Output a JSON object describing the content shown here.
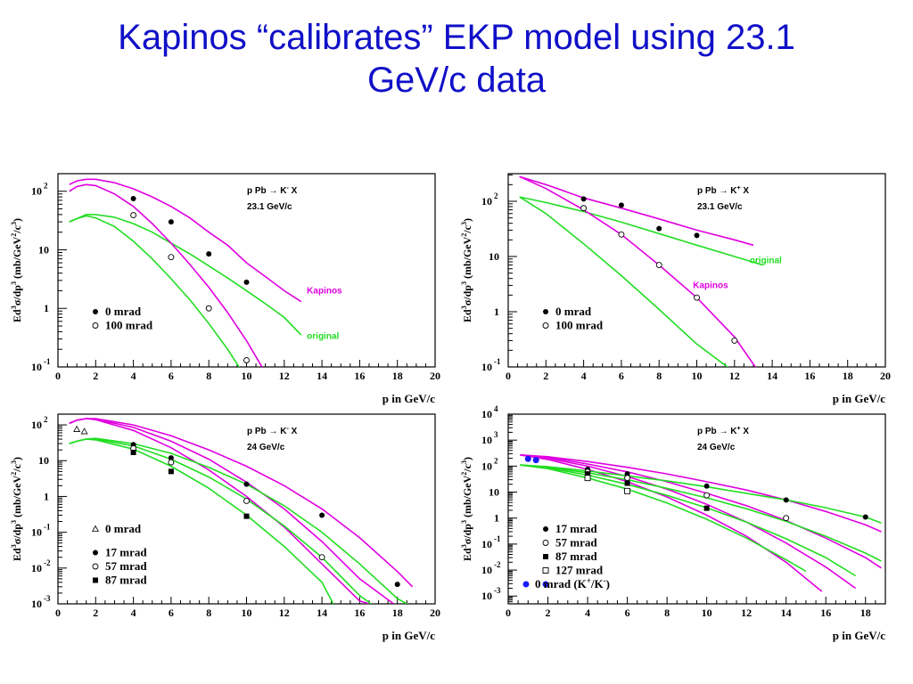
{
  "slide": {
    "title_line1": "Kapinos “calibrates” EKP model using 23.1",
    "title_line2": "GeV/c data"
  },
  "colors": {
    "title": "#1010c8",
    "magenta": "#e000e0",
    "green": "#22dd22",
    "blue": "#1a1aff",
    "axis": "#000000"
  },
  "chart_data": [
    {
      "type": "scatter",
      "reaction": "p Pb → K⁻ X",
      "energy": "23.1 GeV/c",
      "xlabel": "p in GeV/c",
      "ylabel": "Ed³σ/dp³  (mb/GeV²/c³)",
      "xlim": [
        0,
        20
      ],
      "ylim_log10": [
        -1,
        2.3
      ],
      "log_y": true,
      "x_ticks": [
        0,
        2,
        4,
        6,
        8,
        10,
        12,
        14,
        16,
        18,
        20
      ],
      "y_ticks": [
        {
          "e": -1,
          "label": "10",
          "sup": "-1"
        },
        {
          "e": 0,
          "label": "1",
          "sup": ""
        },
        {
          "e": 1,
          "label": "10",
          "sup": ""
        },
        {
          "e": 2,
          "label": "10",
          "sup": "2"
        }
      ],
      "legend": [
        {
          "marker": "filled-circle",
          "label": "0 mrad"
        },
        {
          "marker": "open-circle",
          "label": "100 mrad"
        }
      ],
      "curve_labels": [
        {
          "text": "Kapinos",
          "color": "#e000e0",
          "x": 13.2,
          "y": 1.8
        },
        {
          "text": "original",
          "color": "#22dd22",
          "x": 13.2,
          "y": 0.3
        }
      ],
      "series": [
        {
          "name": "0 mrad",
          "marker": "filled-circle",
          "x": [
            4,
            6,
            8,
            10
          ],
          "y": [
            75,
            30,
            8.5,
            2.8
          ]
        },
        {
          "name": "100 mrad",
          "marker": "open-circle",
          "x": [
            4,
            6,
            8,
            10
          ],
          "y": [
            39,
            7.5,
            1,
            0.13
          ]
        }
      ],
      "curves": [
        {
          "color": "magenta",
          "x": [
            0.6,
            1,
            1.5,
            2,
            3,
            4,
            5,
            6,
            7,
            8,
            9,
            10,
            11,
            12,
            12.9
          ],
          "y": [
            130,
            150,
            160,
            160,
            140,
            110,
            80,
            55,
            35,
            20,
            12,
            6,
            3.5,
            2,
            1.3
          ]
        },
        {
          "color": "green",
          "x": [
            0.6,
            1,
            1.5,
            2,
            3,
            4,
            5,
            6,
            7,
            8,
            9,
            10,
            11,
            12,
            12.9
          ],
          "y": [
            30,
            34,
            40,
            40,
            36,
            28,
            20,
            13,
            8.5,
            5.3,
            3.3,
            2,
            1.2,
            0.7,
            0.35
          ]
        },
        {
          "color": "magenta",
          "x": [
            0.6,
            1,
            1.5,
            2,
            3,
            4,
            5,
            6,
            7,
            8,
            9,
            10,
            11
          ],
          "y": [
            100,
            120,
            130,
            125,
            90,
            55,
            28,
            13,
            5.6,
            2.3,
            0.85,
            0.28,
            0.08
          ]
        },
        {
          "color": "green",
          "x": [
            0.6,
            1,
            1.5,
            2,
            3,
            4,
            5,
            6,
            7,
            8,
            9,
            9.8
          ],
          "y": [
            30,
            34,
            38,
            35,
            25,
            14,
            7,
            3.2,
            1.4,
            0.55,
            0.2,
            0.08
          ]
        }
      ]
    },
    {
      "type": "scatter",
      "reaction": "p Pb → K⁺ X",
      "energy": "23.1 GeV/c",
      "xlabel": "p in GeV/c",
      "ylabel": "Ed³σ/dp³  (mb/GeV²/c³)",
      "xlim": [
        0,
        20
      ],
      "ylim_log10": [
        -1,
        2.5
      ],
      "log_y": true,
      "x_ticks": [
        0,
        2,
        4,
        6,
        8,
        10,
        12,
        14,
        16,
        18,
        20
      ],
      "y_ticks": [
        {
          "e": -1,
          "label": "10",
          "sup": "-1"
        },
        {
          "e": 0,
          "label": "1",
          "sup": ""
        },
        {
          "e": 1,
          "label": "10",
          "sup": ""
        },
        {
          "e": 2,
          "label": "10",
          "sup": "2"
        }
      ],
      "legend": [
        {
          "marker": "filled-circle",
          "label": "0 mrad"
        },
        {
          "marker": "open-circle",
          "label": "100 mrad"
        }
      ],
      "curve_labels": [
        {
          "text": "original",
          "color": "#22dd22",
          "x": 12.8,
          "y": 7.5
        },
        {
          "text": "Kapinos",
          "color": "#e000e0",
          "x": 9.8,
          "y": 2.7
        }
      ],
      "series": [
        {
          "name": "0 mrad",
          "marker": "filled-circle",
          "x": [
            4,
            6,
            8,
            10
          ],
          "y": [
            110,
            85,
            32,
            24
          ]
        },
        {
          "name": "100 mrad",
          "marker": "open-circle",
          "x": [
            4,
            6,
            8,
            10,
            12
          ],
          "y": [
            75,
            25,
            7,
            1.8,
            0.3
          ]
        }
      ],
      "curves": [
        {
          "color": "magenta",
          "x": [
            0.6,
            2,
            4,
            6,
            8,
            10,
            12,
            13
          ],
          "y": [
            280,
            200,
            115,
            75,
            48,
            30,
            20,
            16
          ]
        },
        {
          "color": "green",
          "x": [
            0.6,
            2,
            4,
            6,
            8,
            10,
            12,
            13.5
          ],
          "y": [
            120,
            95,
            65,
            42,
            26,
            16,
            10,
            7
          ]
        },
        {
          "color": "magenta",
          "x": [
            0.6,
            2,
            4,
            6,
            8,
            10,
            12,
            13.3
          ],
          "y": [
            280,
            170,
            70,
            25,
            7,
            1.8,
            0.35,
            0.08
          ]
        },
        {
          "color": "green",
          "x": [
            0.6,
            2,
            4,
            6,
            8,
            10,
            12
          ],
          "y": [
            120,
            60,
            17,
            4.5,
            1.1,
            0.26,
            0.08
          ]
        }
      ]
    },
    {
      "type": "scatter",
      "reaction": "p Pb → K⁻ X",
      "energy": "24 GeV/c",
      "xlabel": "p in GeV/c",
      "ylabel": "Ed³σ/dp³  (mb/GeV²/c³)",
      "xlim": [
        0,
        20
      ],
      "ylim_log10": [
        -3,
        2.3
      ],
      "log_y": true,
      "x_ticks": [
        0,
        2,
        4,
        6,
        8,
        10,
        12,
        14,
        16,
        18,
        20
      ],
      "y_ticks": [
        {
          "e": -3,
          "label": "10",
          "sup": "-3"
        },
        {
          "e": -2,
          "label": "10",
          "sup": "-2"
        },
        {
          "e": -1,
          "label": "10",
          "sup": "-1"
        },
        {
          "e": 0,
          "label": "1",
          "sup": ""
        },
        {
          "e": 1,
          "label": "10",
          "sup": ""
        },
        {
          "e": 2,
          "label": "10",
          "sup": "2"
        }
      ],
      "legend": [
        {
          "marker": "open-triangle",
          "label": "0 mrad"
        },
        {
          "marker": "filled-circle",
          "label": "17 mrad"
        },
        {
          "marker": "open-circle",
          "label": "57 mrad"
        },
        {
          "marker": "filled-square",
          "label": "87 mrad"
        }
      ],
      "curve_labels": [],
      "series": [
        {
          "name": "0 mrad",
          "marker": "open-triangle",
          "x": [
            1,
            1.4
          ],
          "y": [
            75,
            65
          ]
        },
        {
          "name": "17 mrad",
          "marker": "filled-circle",
          "x": [
            4,
            6,
            10,
            14,
            18
          ],
          "y": [
            28,
            12,
            2.2,
            0.3,
            0.0035
          ]
        },
        {
          "name": "57 mrad",
          "marker": "open-circle",
          "x": [
            4,
            6,
            10,
            14
          ],
          "y": [
            22,
            9,
            0.75,
            0.02
          ]
        },
        {
          "name": "87 mrad",
          "marker": "filled-square",
          "x": [
            4,
            6,
            10
          ],
          "y": [
            17,
            5,
            0.28
          ]
        }
      ],
      "curves": [
        {
          "color": "magenta",
          "x": [
            0.6,
            1,
            1.5,
            2,
            4,
            6,
            8,
            10,
            12,
            14,
            16,
            18,
            18.8
          ],
          "y": [
            110,
            135,
            150,
            150,
            100,
            50,
            20,
            7,
            2,
            0.45,
            0.07,
            0.008,
            0.003
          ]
        },
        {
          "color": "magenta",
          "x": [
            0.6,
            1,
            1.5,
            2,
            4,
            6,
            8,
            10,
            12,
            14,
            16,
            17.8
          ],
          "y": [
            110,
            135,
            150,
            145,
            85,
            35,
            11,
            2.5,
            0.45,
            0.055,
            0.005,
            0.001
          ]
        },
        {
          "color": "magenta",
          "x": [
            0.6,
            1,
            1.5,
            2,
            4,
            6,
            8,
            10,
            12,
            14,
            16,
            16.5
          ],
          "y": [
            110,
            135,
            150,
            140,
            70,
            23,
            5.5,
            1,
            0.14,
            0.013,
            0.0012,
            0.001
          ]
        },
        {
          "color": "green",
          "x": [
            0.6,
            1,
            1.5,
            2,
            4,
            6,
            8,
            10,
            12,
            14,
            16,
            18,
            18.5
          ],
          "y": [
            30,
            35,
            40,
            42,
            30,
            16,
            6.5,
            2.2,
            0.55,
            0.1,
            0.013,
            0.0014,
            0.001
          ]
        },
        {
          "color": "green",
          "x": [
            0.6,
            1,
            1.5,
            2,
            4,
            6,
            8,
            10,
            12,
            14,
            16,
            16.6
          ],
          "y": [
            30,
            35,
            40,
            40,
            26,
            11,
            3.5,
            0.85,
            0.15,
            0.02,
            0.0017,
            0.001
          ]
        },
        {
          "color": "green",
          "x": [
            0.6,
            1,
            1.5,
            2,
            4,
            6,
            8,
            10,
            12,
            14,
            14.6
          ],
          "y": [
            30,
            35,
            40,
            38,
            21,
            7,
            1.7,
            0.3,
            0.04,
            0.004,
            0.001
          ]
        }
      ]
    },
    {
      "type": "scatter",
      "reaction": "p Pb → K⁺ X",
      "energy": "24 GeV/c",
      "xlabel": "p in GeV/c",
      "ylabel": "Ed³σ/dp³  (mb/GeV²/c³)",
      "xlim": [
        0,
        19
      ],
      "ylim_log10": [
        -3.3,
        4
      ],
      "log_y": true,
      "x_ticks": [
        0,
        2,
        4,
        6,
        8,
        10,
        12,
        14,
        16,
        18
      ],
      "y_ticks": [
        {
          "e": -3,
          "label": "10",
          "sup": "-3"
        },
        {
          "e": -2,
          "label": "10",
          "sup": "-2"
        },
        {
          "e": -1,
          "label": "10",
          "sup": "-1"
        },
        {
          "e": 0,
          "label": "1",
          "sup": ""
        },
        {
          "e": 1,
          "label": "10",
          "sup": ""
        },
        {
          "e": 2,
          "label": "10",
          "sup": "2"
        },
        {
          "e": 3,
          "label": "10",
          "sup": "3"
        },
        {
          "e": 4,
          "label": "10",
          "sup": "4"
        }
      ],
      "legend": [
        {
          "marker": "filled-circle",
          "label": "17 mrad"
        },
        {
          "marker": "open-circle",
          "label": "57 mrad"
        },
        {
          "marker": "filled-square",
          "label": "87 mrad"
        },
        {
          "marker": "open-square",
          "label": "127 mrad"
        },
        {
          "marker": "blue-circle",
          "label": "0 mrad (K⁺/K⁻)"
        }
      ],
      "curve_labels": [],
      "series": [
        {
          "name": "17 mrad",
          "marker": "filled-circle",
          "x": [
            4,
            6,
            10,
            14,
            18
          ],
          "y": [
            75,
            50,
            17,
            5,
            1.1
          ]
        },
        {
          "name": "57 mrad",
          "marker": "open-circle",
          "x": [
            4,
            6,
            10,
            14
          ],
          "y": [
            60,
            35,
            7.5,
            1
          ]
        },
        {
          "name": "87 mrad",
          "marker": "filled-square",
          "x": [
            4,
            6,
            10
          ],
          "y": [
            50,
            22,
            2.4
          ]
        },
        {
          "name": "127 mrad",
          "marker": "open-square",
          "x": [
            4,
            6
          ],
          "y": [
            35,
            11
          ]
        },
        {
          "name": "0 mrad (K⁺/K⁻)",
          "marker": "blue-circle",
          "x": [
            1,
            1.4
          ],
          "y": [
            190,
            170
          ]
        }
      ],
      "curves": [
        {
          "color": "magenta",
          "x": [
            0.6,
            2,
            4,
            6,
            8,
            10,
            12,
            14,
            16,
            18,
            18.8
          ],
          "y": [
            270,
            230,
            150,
            90,
            50,
            25,
            12,
            5,
            1.8,
            0.55,
            0.3
          ]
        },
        {
          "color": "magenta",
          "x": [
            0.6,
            2,
            4,
            6,
            8,
            10,
            12,
            14,
            16,
            18,
            18.8
          ],
          "y": [
            270,
            220,
            120,
            60,
            25,
            9,
            3,
            0.8,
            0.17,
            0.03,
            0.012
          ]
        },
        {
          "color": "magenta",
          "x": [
            0.6,
            2,
            4,
            6,
            8,
            10,
            12,
            14,
            16,
            17.5
          ],
          "y": [
            270,
            200,
            100,
            40,
            13,
            3.4,
            0.7,
            0.11,
            0.013,
            0.002
          ]
        },
        {
          "color": "magenta",
          "x": [
            0.6,
            2,
            4,
            6,
            8,
            10,
            12,
            14,
            15.8
          ],
          "y": [
            270,
            180,
            75,
            25,
            6.5,
            1.3,
            0.2,
            0.02,
            0.0015
          ]
        },
        {
          "color": "green",
          "x": [
            0.6,
            2,
            4,
            6,
            8,
            10,
            12,
            14,
            16,
            18,
            18.8
          ],
          "y": [
            110,
            95,
            65,
            42,
            27,
            16,
            9,
            5,
            2.5,
            1.1,
            0.65
          ]
        },
        {
          "color": "green",
          "x": [
            0.6,
            2,
            4,
            6,
            8,
            10,
            12,
            14,
            16,
            18,
            18.8
          ],
          "y": [
            110,
            90,
            55,
            30,
            14,
            6,
            2.3,
            0.75,
            0.2,
            0.045,
            0.022
          ]
        },
        {
          "color": "green",
          "x": [
            0.6,
            2,
            4,
            6,
            8,
            10,
            12,
            14,
            16,
            17.5
          ],
          "y": [
            110,
            85,
            45,
            20,
            7.5,
            2.5,
            0.7,
            0.16,
            0.03,
            0.006
          ]
        },
        {
          "color": "green",
          "x": [
            0.6,
            2,
            4,
            6,
            8,
            10,
            12,
            14,
            15
          ],
          "y": [
            110,
            80,
            35,
            13,
            3.8,
            0.9,
            0.17,
            0.025,
            0.009
          ]
        }
      ]
    }
  ]
}
